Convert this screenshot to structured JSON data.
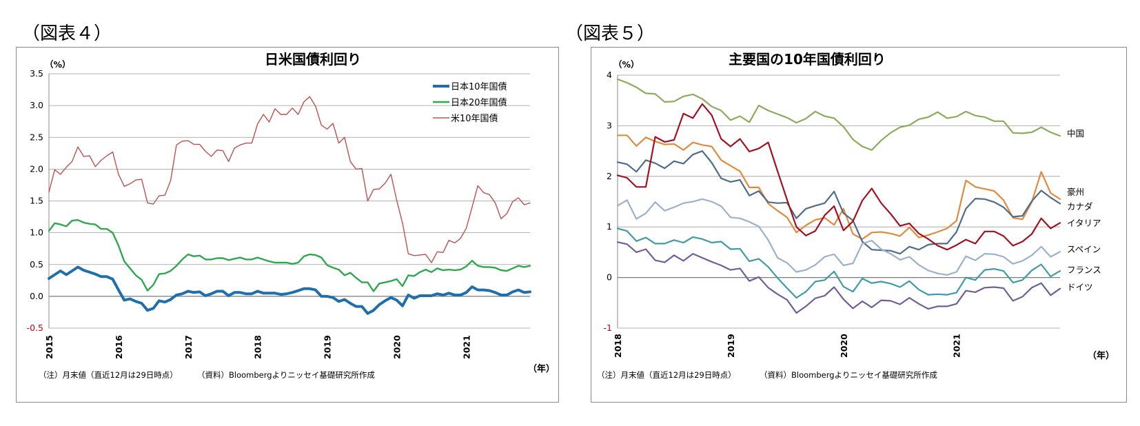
{
  "figures": [
    {
      "label": "（図表４）"
    },
    {
      "label": "（図表５）"
    }
  ],
  "chart_data": [
    {
      "type": "line",
      "title": "日米国債利回り",
      "ylabel": "（%）",
      "xlabel": "（年）",
      "ylim": [
        -0.5,
        3.5
      ],
      "yticks": [
        "3.5",
        "3.0",
        "2.5",
        "2.0",
        "1.5",
        "1.0",
        "0.5",
        "0.0",
        "-0.5"
      ],
      "xticks": [
        "2015",
        "2016",
        "2017",
        "2018",
        "2019",
        "2020",
        "2021"
      ],
      "x_start": "2015-01",
      "x_end": "2021-12",
      "note": "（注）月末値（直近12月は29日時点）",
      "source": "（資料）Bloombergよりニッセイ基礎研究所作成",
      "grid": true,
      "legend_position": "top-right",
      "series": [
        {
          "name": "日本10年国債",
          "color": "#1f6fad",
          "values": [
            0.28,
            0.34,
            0.4,
            0.34,
            0.4,
            0.46,
            0.41,
            0.38,
            0.35,
            0.31,
            0.31,
            0.27,
            0.1,
            -0.06,
            -0.04,
            -0.08,
            -0.11,
            -0.22,
            -0.19,
            -0.07,
            -0.09,
            -0.05,
            0.02,
            0.04,
            0.08,
            0.06,
            0.07,
            0.01,
            0.04,
            0.08,
            0.08,
            0.01,
            0.06,
            0.06,
            0.04,
            0.04,
            0.08,
            0.05,
            0.05,
            0.05,
            0.03,
            0.04,
            0.06,
            0.09,
            0.12,
            0.12,
            0.1,
            0.0,
            0.0,
            -0.02,
            -0.08,
            -0.05,
            -0.11,
            -0.16,
            -0.16,
            -0.27,
            -0.22,
            -0.13,
            -0.07,
            -0.02,
            -0.06,
            -0.15,
            0.02,
            -0.03,
            0.01,
            0.01,
            0.01,
            0.04,
            0.02,
            0.05,
            0.02,
            0.02,
            0.06,
            0.15,
            0.1,
            0.1,
            0.09,
            0.06,
            0.02,
            0.02,
            0.07,
            0.1,
            0.06,
            0.07
          ]
        },
        {
          "name": "日本20年国債",
          "color": "#2ea84f",
          "values": [
            1.03,
            1.15,
            1.13,
            1.1,
            1.19,
            1.2,
            1.16,
            1.14,
            1.13,
            1.06,
            1.06,
            1.0,
            0.8,
            0.55,
            0.44,
            0.33,
            0.26,
            0.09,
            0.18,
            0.35,
            0.36,
            0.4,
            0.48,
            0.58,
            0.66,
            0.63,
            0.64,
            0.58,
            0.58,
            0.6,
            0.6,
            0.57,
            0.59,
            0.61,
            0.58,
            0.58,
            0.61,
            0.58,
            0.55,
            0.53,
            0.53,
            0.53,
            0.51,
            0.53,
            0.63,
            0.66,
            0.65,
            0.61,
            0.49,
            0.45,
            0.42,
            0.33,
            0.37,
            0.29,
            0.22,
            0.22,
            0.08,
            0.2,
            0.22,
            0.24,
            0.27,
            0.16,
            0.33,
            0.32,
            0.38,
            0.42,
            0.38,
            0.44,
            0.41,
            0.42,
            0.41,
            0.42,
            0.47,
            0.56,
            0.48,
            0.46,
            0.46,
            0.45,
            0.41,
            0.4,
            0.44,
            0.48,
            0.46,
            0.48
          ]
        },
        {
          "name": "米10年国債",
          "color": "#c0504d",
          "values": [
            1.64,
            1.99,
            1.92,
            2.03,
            2.12,
            2.35,
            2.2,
            2.21,
            2.04,
            2.14,
            2.21,
            2.27,
            1.92,
            1.73,
            1.77,
            1.83,
            1.84,
            1.47,
            1.45,
            1.58,
            1.59,
            1.82,
            2.38,
            2.44,
            2.45,
            2.39,
            2.39,
            2.28,
            2.2,
            2.3,
            2.29,
            2.12,
            2.33,
            2.38,
            2.41,
            2.41,
            2.71,
            2.86,
            2.74,
            2.95,
            2.86,
            2.86,
            2.96,
            2.86,
            3.06,
            3.14,
            2.99,
            2.69,
            2.63,
            2.72,
            2.41,
            2.5,
            2.12,
            2.0,
            2.01,
            1.5,
            1.68,
            1.69,
            1.78,
            1.92,
            1.51,
            1.15,
            0.67,
            0.64,
            0.65,
            0.66,
            0.53,
            0.7,
            0.69,
            0.88,
            0.84,
            0.91,
            1.07,
            1.4,
            1.74,
            1.63,
            1.6,
            1.47,
            1.22,
            1.3,
            1.49,
            1.55,
            1.44,
            1.47
          ]
        }
      ]
    },
    {
      "type": "line",
      "title": "主要国の10年国債利回り",
      "ylabel": "（%）",
      "xlabel": "（年）",
      "ylim": [
        -1,
        4
      ],
      "yticks": [
        "4",
        "3",
        "2",
        "1",
        "0",
        "-1"
      ],
      "xticks": [
        "2018",
        "2019",
        "2020",
        "2021"
      ],
      "x_start": "2018-01",
      "x_end": "2021-12",
      "note": "（注）月末値（直近12月は29日時点）",
      "source": "（資料）Bloombergよりニッセイ基礎研究所作成",
      "grid": true,
      "series": [
        {
          "name": "中国",
          "color": "#8aac5a",
          "values": [
            3.92,
            3.85,
            3.76,
            3.64,
            3.63,
            3.47,
            3.48,
            3.58,
            3.62,
            3.53,
            3.38,
            3.3,
            3.11,
            3.19,
            3.07,
            3.4,
            3.3,
            3.23,
            3.16,
            3.06,
            3.14,
            3.28,
            3.19,
            3.15,
            2.98,
            2.73,
            2.59,
            2.52,
            2.71,
            2.86,
            2.97,
            3.01,
            3.13,
            3.17,
            3.27,
            3.15,
            3.18,
            3.28,
            3.2,
            3.17,
            3.09,
            3.09,
            2.86,
            2.85,
            2.87,
            2.97,
            2.87,
            2.8
          ]
        },
        {
          "name": "豪州",
          "color": "#e08a3c",
          "values": [
            2.81,
            2.81,
            2.6,
            2.77,
            2.69,
            2.63,
            2.64,
            2.52,
            2.67,
            2.62,
            2.59,
            2.32,
            2.21,
            2.1,
            1.78,
            1.78,
            1.46,
            1.32,
            1.19,
            0.89,
            1.03,
            1.14,
            1.18,
            1.04,
            1.36,
            0.86,
            0.76,
            0.89,
            0.9,
            0.87,
            0.82,
            0.99,
            0.79,
            0.84,
            0.9,
            0.97,
            1.12,
            1.92,
            1.79,
            1.75,
            1.71,
            1.53,
            1.18,
            1.15,
            1.49,
            2.09,
            1.67,
            1.55
          ]
        },
        {
          "name": "カナダ",
          "color": "#4f6b8c",
          "values": [
            2.28,
            2.24,
            2.09,
            2.32,
            2.26,
            2.16,
            2.3,
            2.25,
            2.43,
            2.5,
            2.27,
            1.96,
            1.89,
            1.93,
            1.62,
            1.71,
            1.49,
            1.47,
            1.48,
            1.17,
            1.36,
            1.42,
            1.47,
            1.7,
            1.27,
            1.13,
            0.71,
            0.55,
            0.54,
            0.53,
            0.47,
            0.61,
            0.55,
            0.65,
            0.67,
            0.67,
            0.9,
            1.36,
            1.56,
            1.55,
            1.49,
            1.39,
            1.2,
            1.22,
            1.51,
            1.72,
            1.58,
            1.46
          ]
        },
        {
          "name": "イタリア",
          "color": "#a51020",
          "values": [
            2.02,
            1.97,
            1.79,
            1.79,
            2.78,
            2.68,
            2.72,
            3.24,
            3.15,
            3.43,
            3.21,
            2.74,
            2.59,
            2.74,
            2.49,
            2.55,
            2.67,
            2.1,
            1.54,
            1.0,
            0.83,
            0.92,
            1.23,
            1.41,
            0.93,
            1.11,
            1.52,
            1.76,
            1.47,
            1.26,
            1.02,
            1.07,
            0.87,
            0.76,
            0.63,
            0.55,
            0.64,
            0.75,
            0.67,
            0.91,
            0.91,
            0.82,
            0.63,
            0.71,
            0.86,
            1.17,
            0.97,
            1.08
          ]
        },
        {
          "name": "スペイン",
          "color": "#9ab0cc",
          "values": [
            1.42,
            1.53,
            1.16,
            1.27,
            1.49,
            1.32,
            1.39,
            1.47,
            1.5,
            1.55,
            1.5,
            1.41,
            1.19,
            1.17,
            1.1,
            1.01,
            0.74,
            0.39,
            0.29,
            0.11,
            0.15,
            0.25,
            0.41,
            0.46,
            0.24,
            0.28,
            0.67,
            0.73,
            0.56,
            0.47,
            0.35,
            0.41,
            0.25,
            0.14,
            0.08,
            0.05,
            0.11,
            0.42,
            0.34,
            0.47,
            0.46,
            0.41,
            0.27,
            0.33,
            0.44,
            0.61,
            0.41,
            0.51
          ]
        },
        {
          "name": "フランス",
          "color": "#3e9aa6",
          "values": [
            0.97,
            0.92,
            0.72,
            0.79,
            0.67,
            0.67,
            0.74,
            0.69,
            0.8,
            0.76,
            0.69,
            0.71,
            0.56,
            0.57,
            0.32,
            0.37,
            0.21,
            -0.01,
            -0.21,
            -0.4,
            -0.28,
            -0.08,
            -0.05,
            0.12,
            -0.18,
            -0.28,
            -0.02,
            -0.11,
            -0.08,
            -0.12,
            -0.19,
            -0.07,
            -0.24,
            -0.34,
            -0.33,
            -0.34,
            -0.3,
            0.0,
            -0.05,
            0.15,
            0.17,
            0.13,
            -0.1,
            -0.05,
            0.14,
            0.26,
            0.02,
            0.13
          ]
        },
        {
          "name": "ドイツ",
          "color": "#6e5e9a",
          "values": [
            0.7,
            0.66,
            0.5,
            0.56,
            0.34,
            0.3,
            0.44,
            0.33,
            0.47,
            0.39,
            0.31,
            0.24,
            0.15,
            0.18,
            -0.07,
            0.01,
            -0.2,
            -0.33,
            -0.44,
            -0.7,
            -0.57,
            -0.41,
            -0.36,
            -0.19,
            -0.43,
            -0.61,
            -0.47,
            -0.59,
            -0.45,
            -0.46,
            -0.53,
            -0.4,
            -0.52,
            -0.62,
            -0.57,
            -0.57,
            -0.52,
            -0.26,
            -0.29,
            -0.2,
            -0.19,
            -0.21,
            -0.46,
            -0.38,
            -0.2,
            -0.11,
            -0.35,
            -0.22
          ]
        }
      ]
    }
  ]
}
